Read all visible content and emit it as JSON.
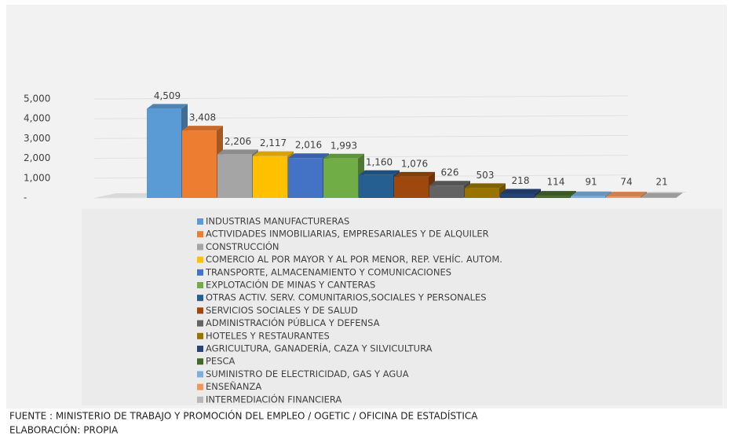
{
  "chart_data": {
    "type": "bar",
    "series": [
      {
        "name": "INDUSTRIAS MANUFACTURERAS",
        "color": "#5b9bd5",
        "values": [
          4509
        ],
        "value_labels": [
          "4,509"
        ]
      },
      {
        "name": "ACTIVIDADES INMOBILIARIAS, EMPRESARIALES Y DE ALQUILER",
        "color": "#ed7d31",
        "values": [
          3408
        ],
        "value_labels": [
          "3,408"
        ]
      },
      {
        "name": "CONSTRUCCIÓN",
        "color": "#a5a5a5",
        "values": [
          2206
        ],
        "value_labels": [
          "2,206"
        ]
      },
      {
        "name": "COMERCIO AL POR MAYOR Y AL POR MENOR, REP. VEHÍC. AUTOM.",
        "color": "#ffc000",
        "values": [
          2117
        ],
        "value_labels": [
          "2,117"
        ]
      },
      {
        "name": "TRANSPORTE, ALMACENAMIENTO Y COMUNICACIONES",
        "color": "#4472c4",
        "values": [
          2016
        ],
        "value_labels": [
          "2,016"
        ]
      },
      {
        "name": "EXPLOTACIÓN DE MINAS Y CANTERAS",
        "color": "#70ad47",
        "values": [
          1993
        ],
        "value_labels": [
          "1,993"
        ]
      },
      {
        "name": "OTRAS ACTIV. SERV. COMUNITARIOS,SOCIALES Y PERSONALES",
        "color": "#255e91",
        "values": [
          1160
        ],
        "value_labels": [
          "1,160"
        ]
      },
      {
        "name": "SERVICIOS SOCIALES Y DE SALUD",
        "color": "#9e480e",
        "values": [
          1076
        ],
        "value_labels": [
          "1,076"
        ]
      },
      {
        "name": "ADMINISTRACIÓN PÚBLICA Y DEFENSA",
        "color": "#636363",
        "values": [
          626
        ]
      },
      {
        "name": "HOTELES Y RESTAURANTES",
        "color": "#997300",
        "values": [
          503
        ]
      },
      {
        "name": "AGRICULTURA, GANADERÍA, CAZA Y SILVICULTURA",
        "color": "#264478",
        "values": [
          218
        ]
      },
      {
        "name": "PESCA",
        "color": "#43682b",
        "values": [
          114
        ]
      },
      {
        "name": "SUMINISTRO DE ELECTRICIDAD, GAS Y AGUA",
        "color": "#7cafdd",
        "values": [
          91
        ]
      },
      {
        "name": "ENSEÑANZA",
        "color": "#f1975a",
        "values": [
          74
        ]
      },
      {
        "name": "INTERMEDIACIÓN FINANCIERA",
        "color": "#b7b7b7",
        "values": [
          21
        ]
      }
    ],
    "ylim": [
      0,
      5000
    ],
    "yticks": [
      {
        "value": 0,
        "label": "-"
      },
      {
        "value": 1000,
        "label": "1,000"
      },
      {
        "value": 2000,
        "label": "2,000"
      },
      {
        "value": 3000,
        "label": "3,000"
      },
      {
        "value": 4000,
        "label": "4,000"
      },
      {
        "value": 5000,
        "label": "5,000"
      }
    ],
    "grid": true,
    "legend": "bottom",
    "source": "FUENTE  : MINISTERIO DE TRABAJO Y PROMOCIÓN DEL EMPLEO / OGETIC / OFICINA DE ESTADÍSTICA",
    "credit": "ELABORACIÓN: PROPIA"
  }
}
